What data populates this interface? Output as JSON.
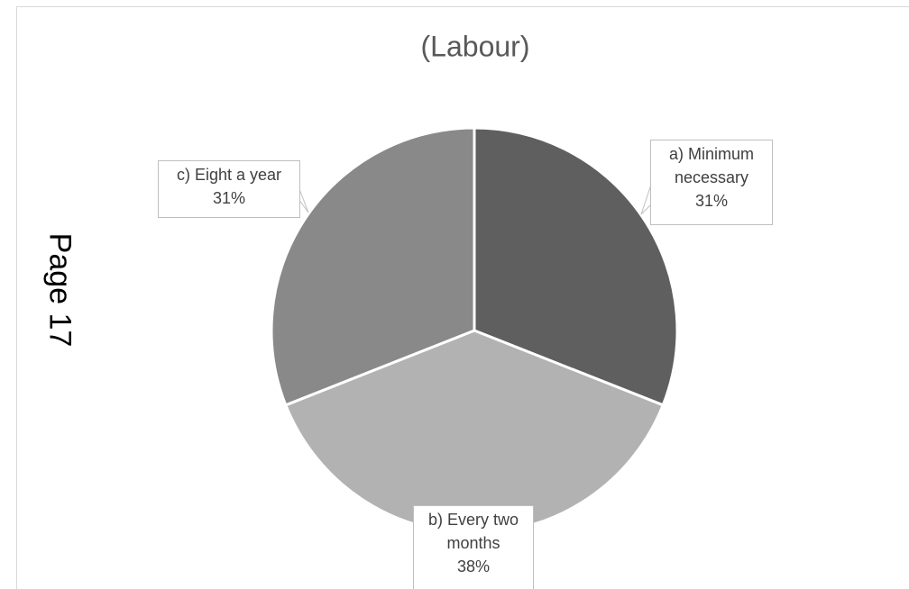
{
  "page": {
    "page_number_label": "Page 17"
  },
  "chart_data": {
    "type": "pie",
    "title": "(Labour)",
    "categories": [
      "a) Minimum necessary",
      "b) Every two months",
      "c) Eight a year"
    ],
    "values": [
      31,
      38,
      31
    ],
    "unit": "%",
    "colors": [
      "#5f5f5f",
      "#b2b2b2",
      "#898989"
    ],
    "start_angle_deg": 0,
    "direction": "clockwise",
    "labels": {
      "a": {
        "line1": "a) Minimum",
        "line2": "necessary",
        "value": "31%"
      },
      "b": {
        "line1": "b) Every two",
        "line2": "months",
        "value": "38%"
      },
      "c": {
        "line1": "c) Eight a year",
        "value": "31%"
      }
    },
    "legend": "none",
    "grid": false
  }
}
